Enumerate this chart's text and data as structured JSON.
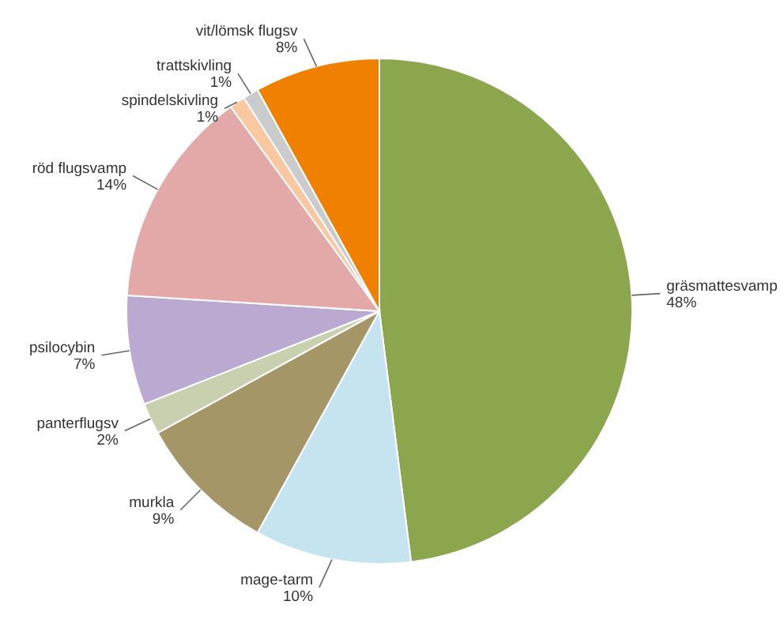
{
  "chart_data": {
    "type": "pie",
    "categories": [
      "gräsmattesvamp",
      "mage-tarm",
      "murkla",
      "panterflugsv",
      "psilocybin",
      "röd flugsvamp",
      "spindelskivling",
      "trattskivling",
      "vit/lömsk flugsv"
    ],
    "values": [
      48,
      10,
      9,
      2,
      7,
      14,
      1,
      1,
      8
    ],
    "value_labels": [
      "48%",
      "10%",
      "9%",
      "2%",
      "7%",
      "14%",
      "1%",
      "1%",
      "8%"
    ],
    "colors": [
      "#8ba64c",
      "#c6e4ef",
      "#a59668",
      "#c8d0b0",
      "#baaad2",
      "#e3a9a9",
      "#f9c8a0",
      "#c9cbcd",
      "#f08100"
    ]
  }
}
